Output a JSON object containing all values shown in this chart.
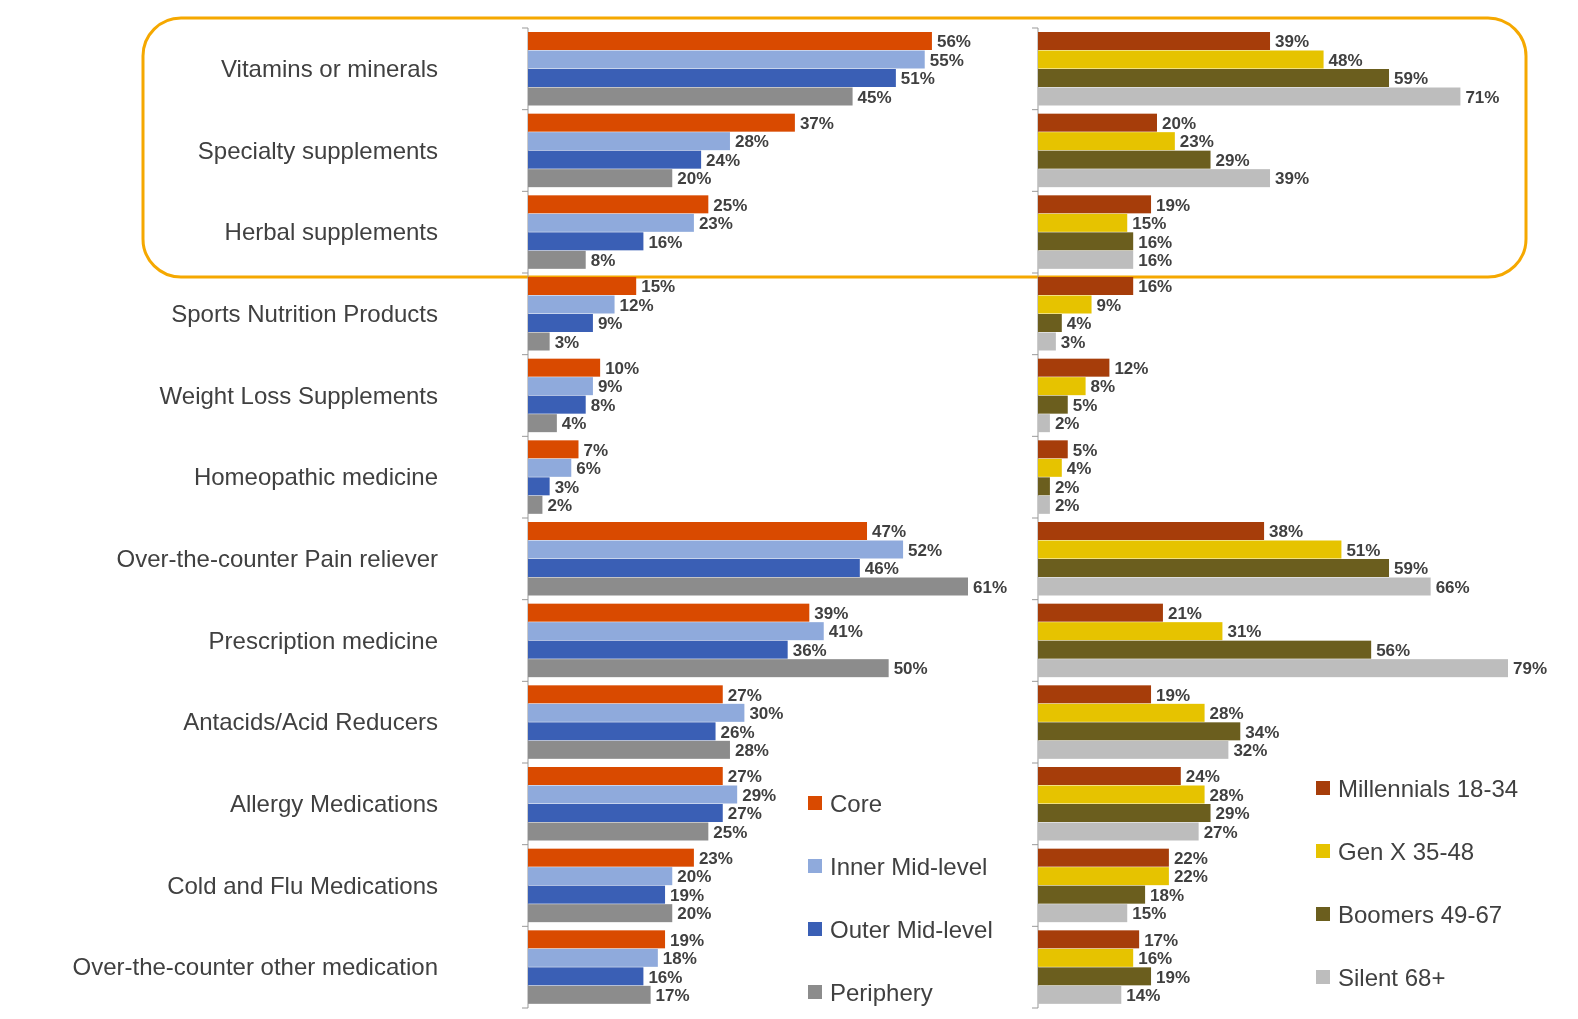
{
  "chart_data": [
    {
      "type": "bar",
      "orientation": "horizontal",
      "legend": "bottom right",
      "categories": [
        "Vitamins or minerals",
        "Specialty supplements",
        "Herbal supplements",
        "Sports Nutrition Products",
        "Weight Loss Supplements",
        "Homeopathic medicine",
        "Over-the-counter Pain reliever",
        "Prescription medicine",
        "Antacids/Acid Reducers",
        "Allergy Medications",
        "Cold and Flu Medications",
        "Over-the-counter other medication"
      ],
      "series": [
        {
          "name": "Core",
          "color": "#d94a00",
          "values": [
            56,
            37,
            25,
            15,
            10,
            7,
            47,
            39,
            27,
            27,
            23,
            19
          ],
          "value_labels": [
            "56%",
            "37%",
            "25%",
            "15%",
            "10%",
            "7%",
            "47%",
            "39%",
            "27%",
            "27%",
            "23%",
            "19%"
          ]
        },
        {
          "name": "Inner Mid-level",
          "color": "#8faadc",
          "values": [
            55,
            28,
            23,
            12,
            9,
            6,
            52,
            41,
            30,
            29,
            20,
            18
          ],
          "value_labels": [
            "55%",
            "28%",
            "23%",
            "12%",
            "9%",
            "6%",
            "52%",
            "41%",
            "30%",
            "29%",
            "20%",
            "18%"
          ]
        },
        {
          "name": "Outer Mid-level",
          "color": "#3a5fb5",
          "values": [
            51,
            24,
            16,
            9,
            8,
            3,
            46,
            36,
            26,
            27,
            19,
            16
          ],
          "value_labels": [
            "51%",
            "24%",
            "16%",
            "9%",
            "8%",
            "3%",
            "46%",
            "36%",
            "26%",
            "27%",
            "19%",
            "16%"
          ]
        },
        {
          "name": "Periphery",
          "color": "#8c8c8c",
          "values": [
            45,
            20,
            8,
            3,
            4,
            2,
            61,
            50,
            28,
            25,
            20,
            17
          ],
          "value_labels": [
            "45%",
            "20%",
            "8%",
            "3%",
            "4%",
            "2%",
            "61%",
            "50%",
            "28%",
            "25%",
            "20%",
            "17%"
          ]
        }
      ]
    },
    {
      "type": "bar",
      "orientation": "horizontal",
      "legend": "right",
      "categories": [
        null,
        null,
        null,
        null,
        null,
        null,
        null,
        null,
        null,
        null,
        null,
        null
      ],
      "series": [
        {
          "name": "Millennials 18-34",
          "color": "#a63d0a",
          "values": [
            39,
            20,
            19,
            16,
            12,
            5,
            38,
            21,
            19,
            24,
            22,
            17
          ],
          "value_labels": [
            "39%",
            "20%",
            "19%",
            "16%",
            "12%",
            "5%",
            "38%",
            "21%",
            "19%",
            "24%",
            "22%",
            "17%"
          ]
        },
        {
          "name": "Gen X 35-48",
          "color": "#e6c300",
          "values": [
            48,
            23,
            15,
            9,
            8,
            4,
            51,
            31,
            28,
            28,
            22,
            16
          ],
          "value_labels": [
            "48%",
            "23%",
            "15%",
            "9%",
            "8%",
            "4%",
            "51%",
            "31%",
            "28%",
            "28%",
            "22%",
            "16%"
          ]
        },
        {
          "name": "Boomers 49-67",
          "color": "#6b5e1e",
          "values": [
            59,
            29,
            16,
            4,
            5,
            2,
            59,
            56,
            34,
            29,
            18,
            19
          ],
          "value_labels": [
            "59%",
            "29%",
            "16%",
            "4%",
            "5%",
            "2%",
            "59%",
            "56%",
            "34%",
            "29%",
            "18%",
            "19%"
          ]
        },
        {
          "name": "Silent 68+",
          "color": "#bdbdbd",
          "values": [
            71,
            39,
            16,
            3,
            2,
            2,
            66,
            79,
            32,
            27,
            15,
            14
          ],
          "value_labels": [
            "71%",
            "39%",
            "16%",
            "3%",
            "2%",
            "2%",
            "66%",
            "79%",
            "32%",
            "27%",
            "15%",
            "14%"
          ]
        }
      ]
    }
  ]
}
